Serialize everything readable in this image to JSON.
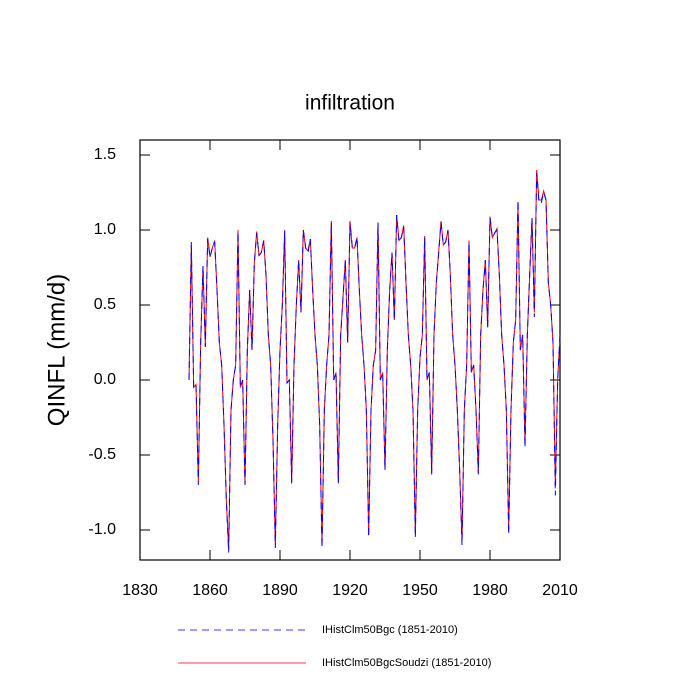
{
  "chart_data": {
    "type": "line",
    "title": "infiltration",
    "y_label": "QINFL  (mm/d)",
    "x": [
      1851,
      1852,
      1853,
      1854,
      1855,
      1856,
      1857,
      1858,
      1859,
      1860,
      1861,
      1862,
      1863,
      1864,
      1865,
      1866,
      1867,
      1868,
      1869,
      1870,
      1871,
      1872,
      1873,
      1874,
      1875,
      1876,
      1877,
      1878,
      1879,
      1880,
      1881,
      1882,
      1883,
      1884,
      1885,
      1886,
      1887,
      1888,
      1889,
      1890,
      1891,
      1892,
      1893,
      1894,
      1895,
      1896,
      1897,
      1898,
      1899,
      1900,
      1901,
      1902,
      1903,
      1904,
      1905,
      1906,
      1907,
      1908,
      1909,
      1910,
      1911,
      1912,
      1913,
      1914,
      1915,
      1916,
      1917,
      1918,
      1919,
      1920,
      1921,
      1922,
      1923,
      1924,
      1925,
      1926,
      1927,
      1928,
      1929,
      1930,
      1931,
      1932,
      1933,
      1934,
      1935,
      1936,
      1937,
      1938,
      1939,
      1940,
      1941,
      1942,
      1943,
      1944,
      1945,
      1946,
      1947,
      1948,
      1949,
      1950,
      1951,
      1952,
      1953,
      1954,
      1955,
      1956,
      1957,
      1958,
      1959,
      1960,
      1961,
      1962,
      1963,
      1964,
      1965,
      1966,
      1967,
      1968,
      1969,
      1970,
      1971,
      1972,
      1973,
      1974,
      1975,
      1976,
      1977,
      1978,
      1979,
      1980,
      1981,
      1982,
      1983,
      1984,
      1985,
      1986,
      1987,
      1988,
      1989,
      1990,
      1991,
      1992,
      1993,
      1994,
      1995,
      1996,
      1997,
      1998,
      1999,
      2000,
      2001,
      2002,
      2003,
      2004,
      2005,
      2006,
      2007,
      2008,
      2009,
      2010
    ],
    "series": [
      {
        "name": "IHistClm50Bgc (1851-2010)",
        "color": "#0000ff",
        "style": "dashed",
        "values": [
          0.0,
          0.92,
          -0.05,
          -0.03,
          -0.7,
          0.25,
          0.76,
          0.22,
          0.94,
          0.82,
          0.88,
          0.92,
          0.6,
          0.25,
          0.1,
          -0.3,
          -0.8,
          -1.15,
          -0.2,
          0.0,
          0.1,
          0.99,
          -0.05,
          0.0,
          -0.7,
          0.2,
          0.6,
          0.2,
          0.78,
          0.98,
          0.83,
          0.85,
          0.93,
          0.7,
          0.3,
          0.1,
          -0.4,
          -1.12,
          -0.3,
          0.2,
          0.5,
          0.99,
          -0.02,
          0.0,
          -0.69,
          0.1,
          0.5,
          0.8,
          0.45,
          1.0,
          0.88,
          0.85,
          0.94,
          0.6,
          0.3,
          0.1,
          -0.3,
          -1.12,
          -0.2,
          0.1,
          0.3,
          1.05,
          0.0,
          0.05,
          -0.69,
          0.3,
          0.55,
          0.8,
          0.25,
          1.05,
          0.88,
          0.88,
          0.95,
          0.6,
          0.3,
          0.1,
          -0.2,
          -1.05,
          -0.2,
          0.1,
          0.2,
          1.05,
          0.0,
          0.05,
          -0.6,
          0.2,
          0.6,
          0.85,
          0.4,
          1.1,
          0.92,
          0.95,
          1.02,
          0.65,
          0.3,
          0.1,
          -0.2,
          -1.05,
          -0.2,
          0.15,
          0.3,
          0.95,
          0.0,
          0.05,
          -0.63,
          0.3,
          0.65,
          0.85,
          1.05,
          0.9,
          0.92,
          1.0,
          0.7,
          0.3,
          0.1,
          -0.2,
          -0.6,
          -1.1,
          -0.2,
          0.1,
          0.92,
          0.05,
          0.1,
          -0.2,
          -0.63,
          0.3,
          0.6,
          0.8,
          0.35,
          1.08,
          0.95,
          0.98,
          1.0,
          0.7,
          0.3,
          0.1,
          -0.2,
          -1.03,
          -0.2,
          0.25,
          0.4,
          1.2,
          0.2,
          0.3,
          -0.45,
          0.3,
          0.7,
          1.08,
          0.42,
          1.38,
          1.18,
          1.18,
          1.25,
          1.2,
          0.65,
          0.5,
          0.25,
          -0.77,
          0.0,
          0.3
        ]
      },
      {
        "name": "IHistClm50BgcSoudzi (1851-2010)",
        "color": "#ff0000",
        "style": "solid",
        "values": [
          0.0,
          0.9,
          -0.05,
          -0.03,
          -0.68,
          0.25,
          0.76,
          0.22,
          0.95,
          0.82,
          0.88,
          0.93,
          0.6,
          0.25,
          0.1,
          -0.3,
          -0.8,
          -1.13,
          -0.2,
          0.0,
          0.1,
          1.0,
          -0.05,
          0.0,
          -0.7,
          0.2,
          0.6,
          0.2,
          0.78,
          0.99,
          0.83,
          0.85,
          0.93,
          0.7,
          0.3,
          0.1,
          -0.4,
          -1.1,
          -0.3,
          0.2,
          0.5,
          1.0,
          -0.02,
          0.0,
          -0.68,
          0.1,
          0.5,
          0.8,
          0.45,
          1.0,
          0.88,
          0.86,
          0.94,
          0.6,
          0.3,
          0.1,
          -0.3,
          -1.1,
          -0.2,
          0.1,
          0.3,
          1.06,
          0.0,
          0.05,
          -0.68,
          0.3,
          0.55,
          0.8,
          0.25,
          1.06,
          0.88,
          0.88,
          0.95,
          0.6,
          0.3,
          0.1,
          -0.2,
          -1.03,
          -0.2,
          0.1,
          0.2,
          1.05,
          0.0,
          0.05,
          -0.6,
          0.2,
          0.6,
          0.85,
          0.4,
          1.1,
          0.93,
          0.95,
          1.03,
          0.65,
          0.3,
          0.1,
          -0.2,
          -1.03,
          -0.2,
          0.15,
          0.3,
          0.96,
          0.0,
          0.05,
          -0.62,
          0.3,
          0.65,
          0.85,
          1.06,
          0.9,
          0.92,
          1.0,
          0.7,
          0.3,
          0.1,
          -0.2,
          -0.6,
          -1.08,
          -0.2,
          0.1,
          0.93,
          0.05,
          0.1,
          -0.2,
          -0.62,
          0.3,
          0.6,
          0.8,
          0.35,
          1.09,
          0.95,
          0.98,
          1.01,
          0.7,
          0.3,
          0.1,
          -0.2,
          -1.0,
          -0.2,
          0.25,
          0.4,
          1.18,
          0.2,
          0.3,
          -0.43,
          0.3,
          0.7,
          1.08,
          0.45,
          1.4,
          1.2,
          1.2,
          1.26,
          1.2,
          0.65,
          0.5,
          0.25,
          -0.7,
          0.0,
          0.3
        ]
      }
    ],
    "xlim": [
      1830,
      2010
    ],
    "xticks": [
      1830,
      1860,
      1890,
      1920,
      1950,
      1980,
      2010
    ],
    "ylim": [
      -1.2,
      1.6
    ],
    "yticks": [
      {
        "value": -1,
        "label": "-1.0"
      },
      -0.5,
      {
        "value": 0,
        "label": "0.0"
      },
      0.5,
      {
        "value": 1,
        "label": "1.0"
      },
      1.5
    ],
    "grid": false,
    "legend": "bottom"
  }
}
